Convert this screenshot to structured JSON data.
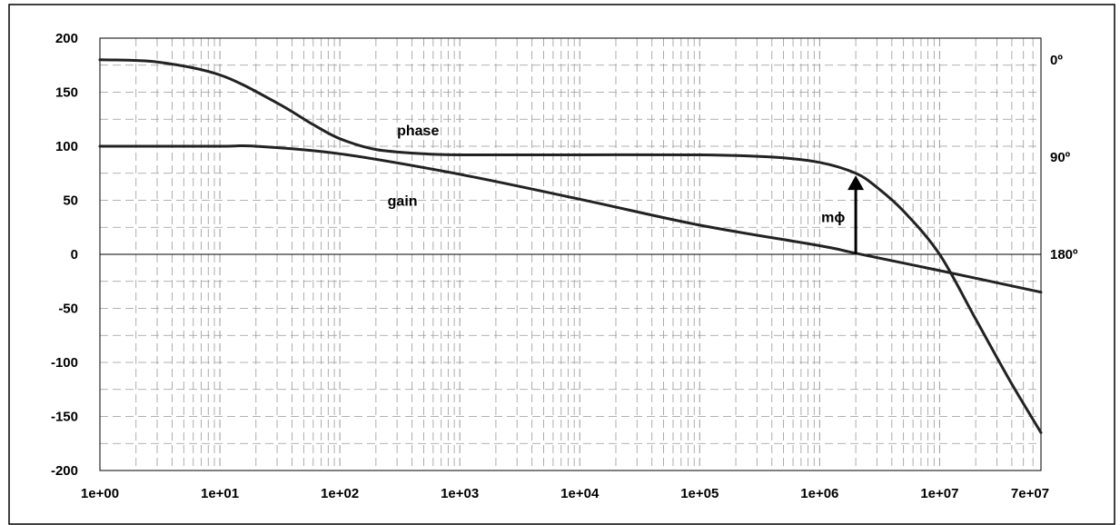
{
  "chart_data": {
    "type": "line",
    "title": "",
    "x_scale": "log",
    "x_tick_labels": [
      "1e+00",
      "1e+01",
      "1e+02",
      "1e+03",
      "1e+04",
      "1e+05",
      "1e+06",
      "1e+07",
      "7e+07"
    ],
    "x_ticks": [
      1,
      10,
      100,
      1000,
      10000,
      100000,
      1000000,
      10000000,
      70000000
    ],
    "xlim": [
      1,
      70000000
    ],
    "y_tick_labels": [
      "200",
      "150",
      "100",
      "50",
      "0",
      "-50",
      "-100",
      "-150",
      "-200"
    ],
    "y_ticks": [
      200,
      150,
      100,
      50,
      0,
      -50,
      -100,
      -150,
      -200
    ],
    "ylim": [
      -200,
      200
    ],
    "right_axis_labels": [
      {
        "value": 180,
        "text": "0º"
      },
      {
        "value": 90,
        "text": "90º"
      },
      {
        "value": 0,
        "text": "180º"
      }
    ],
    "grid": true,
    "series": [
      {
        "name": "phase",
        "x": [
          1,
          3,
          10,
          30,
          60,
          100,
          200,
          500,
          1000,
          10000,
          100000,
          400000,
          1000000,
          2000000,
          3000000,
          5000000,
          10000000,
          20000000,
          40000000,
          70000000
        ],
        "y": [
          180,
          178,
          166,
          140,
          120,
          107,
          97,
          93,
          92,
          92,
          92,
          90,
          85,
          75,
          62,
          40,
          0,
          -60,
          -120,
          -165
        ]
      },
      {
        "name": "gain",
        "x": [
          1,
          10,
          20,
          100,
          1000,
          10000,
          100000,
          1000000,
          2000000,
          10000000,
          70000000
        ],
        "y": [
          100,
          100,
          100,
          93,
          74,
          51,
          27,
          8,
          1,
          -15,
          -35
        ]
      }
    ],
    "annotations": {
      "phase_label": "phase",
      "gain_label": "gain",
      "margin_label": "mϕ",
      "margin_arrow_x": 2000000,
      "margin_arrow_from_y": 0,
      "margin_arrow_to_y": 73
    },
    "colors": {
      "curve": "#222222",
      "grid": "#999999",
      "frame": "#000000",
      "background": "#ffffff"
    }
  }
}
